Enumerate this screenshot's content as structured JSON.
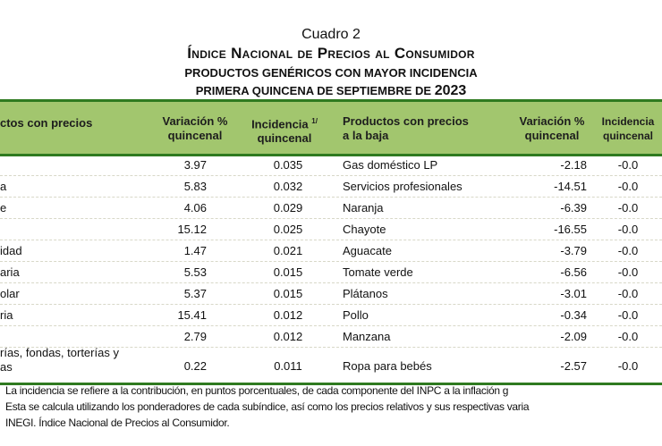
{
  "heading": {
    "cuadro": "Cuadro 2",
    "title": "Índice Nacional de Precios al Consumidor",
    "subtitle": "PRODUCTOS GENÉRICOS CON MAYOR INCIDENCIA",
    "period": "PRIMERA QUINCENA DE SEPTIEMBRE DE",
    "year": "2023"
  },
  "table": {
    "headers": {
      "left_product": "ctos con precios",
      "left_variation_1": "Variación %",
      "left_variation_2": "quincenal",
      "left_incidence_1": "Incidencia",
      "left_incidence_sup": "1/",
      "left_incidence_2": "quincenal",
      "right_product_1": "Productos con precios",
      "right_product_2": "a la baja",
      "right_variation_1": "Variación %",
      "right_variation_2": "quincenal",
      "right_incidence_1": "Incidencia",
      "right_incidence_2": "quincenal"
    },
    "rows": [
      {
        "up_product": "",
        "up_variation": "3.97",
        "up_incidence": "0.035",
        "down_product": "Gas doméstico LP",
        "down_variation": "-2.18",
        "down_incidence": "-0.0"
      },
      {
        "up_product": "a",
        "up_variation": "5.83",
        "up_incidence": "0.032",
        "down_product": "Servicios profesionales",
        "down_variation": "-14.51",
        "down_incidence": "-0.0"
      },
      {
        "up_product": "e",
        "up_variation": "4.06",
        "up_incidence": "0.029",
        "down_product": "Naranja",
        "down_variation": "-6.39",
        "down_incidence": "-0.0"
      },
      {
        "up_product": "",
        "up_variation": "15.12",
        "up_incidence": "0.025",
        "down_product": "Chayote",
        "down_variation": "-16.55",
        "down_incidence": "-0.0"
      },
      {
        "up_product": "idad",
        "up_variation": "1.47",
        "up_incidence": "0.021",
        "down_product": "Aguacate",
        "down_variation": "-3.79",
        "down_incidence": "-0.0"
      },
      {
        "up_product": "aria",
        "up_variation": "5.53",
        "up_incidence": "0.015",
        "down_product": "Tomate verde",
        "down_variation": "-6.56",
        "down_incidence": "-0.0"
      },
      {
        "up_product": "olar",
        "up_variation": "5.37",
        "up_incidence": "0.015",
        "down_product": "Plátanos",
        "down_variation": "-3.01",
        "down_incidence": "-0.0"
      },
      {
        "up_product": "ria",
        "up_variation": "15.41",
        "up_incidence": "0.012",
        "down_product": "Pollo",
        "down_variation": "-0.34",
        "down_incidence": "-0.0"
      },
      {
        "up_product": "",
        "up_variation": "2.79",
        "up_incidence": "0.012",
        "down_product": "Manzana",
        "down_variation": "-2.09",
        "down_incidence": "-0.0"
      },
      {
        "up_product": "rías, fondas, torterías y",
        "up_product_2": "as",
        "up_variation": "0.22",
        "up_incidence": "0.011",
        "down_product": "Ropa para bebés",
        "down_variation": "-2.57",
        "down_incidence": "-0.0"
      }
    ]
  },
  "footnotes": [
    "La incidencia se refiere a la contribución, en puntos porcentuales, de cada componente del INPC a la inflación g",
    "Esta se calcula utilizando los ponderadores de cada subíndice, así como los precios relativos y sus respectivas varia",
    "INEGI. Índice Nacional de Precios al Consumidor."
  ],
  "colors": {
    "header_bg": "#a2c66e",
    "rule": "#2f7a20"
  }
}
